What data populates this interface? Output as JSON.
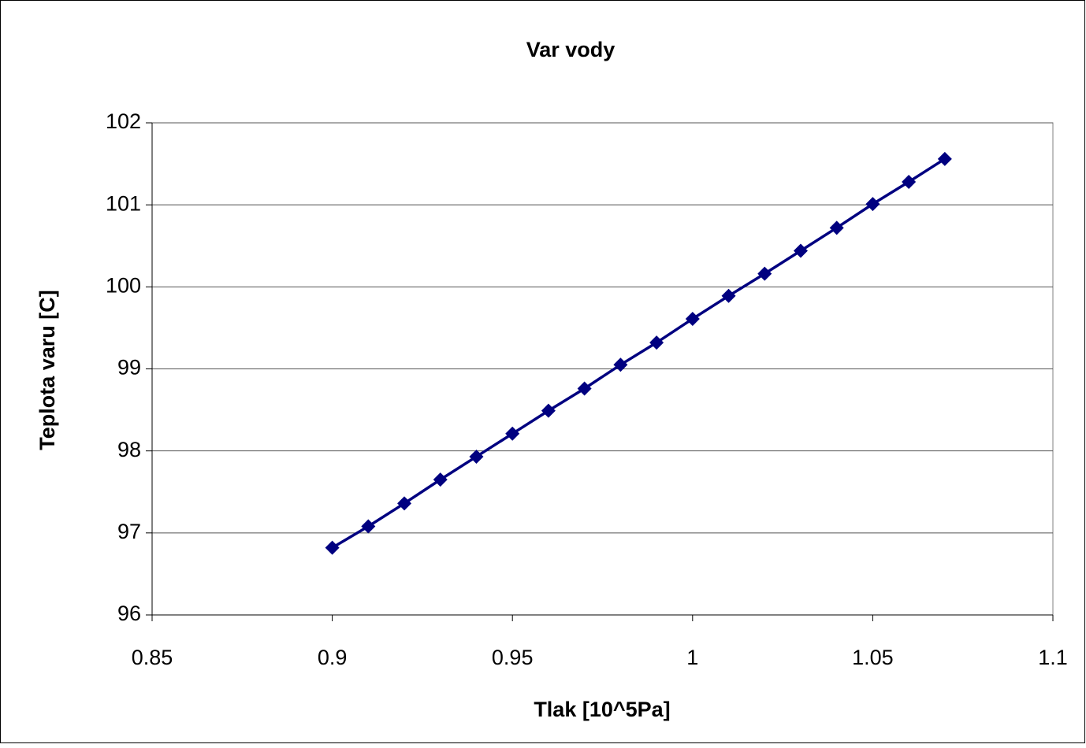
{
  "chart_data": {
    "type": "line",
    "title": "Var vody",
    "x_label": "Tlak [10^5Pa]",
    "y_label": "Teplota varu [C]",
    "x": [
      0.9,
      0.91,
      0.92,
      0.93,
      0.94,
      0.95,
      0.96,
      0.97,
      0.98,
      0.99,
      1.0,
      1.01,
      1.02,
      1.03,
      1.04,
      1.05,
      1.06,
      1.07
    ],
    "series": [
      {
        "name": "Teplota varu",
        "color": "#000080",
        "values": [
          96.82,
          97.08,
          97.36,
          97.65,
          97.93,
          98.21,
          98.49,
          98.76,
          99.05,
          99.32,
          99.61,
          99.89,
          100.16,
          100.44,
          100.72,
          101.01,
          101.28,
          101.56
        ]
      }
    ],
    "xlim": [
      0.85,
      1.1
    ],
    "xticks": [
      0.85,
      0.9,
      0.95,
      1,
      1.05,
      1.1
    ],
    "ylim": [
      96,
      102
    ],
    "yticks": [
      96,
      97,
      98,
      99,
      100,
      101,
      102
    ],
    "grid": true
  }
}
